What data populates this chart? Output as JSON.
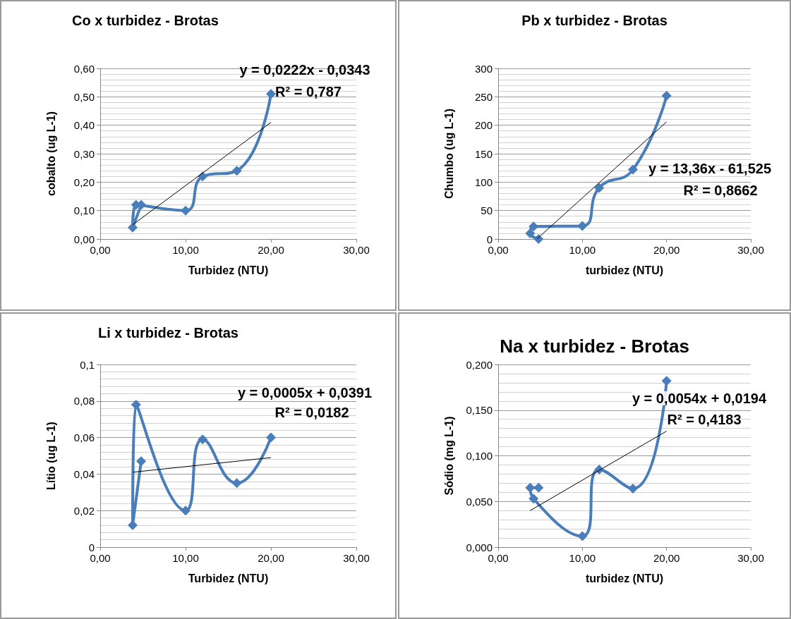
{
  "chart_data": [
    {
      "type": "line",
      "title": "Co x turbidez - Brotas",
      "xlabel": "Turbidez (NTU)",
      "ylabel": "cobalto (ug L-1)",
      "marker": "diamond",
      "line_style": "solid",
      "grid": "y",
      "xlim": [
        0,
        30
      ],
      "xticks": [
        {
          "value": 0,
          "label": "0,00"
        },
        {
          "value": 10,
          "label": "10,00"
        },
        {
          "value": 20,
          "label": "20,00"
        },
        {
          "value": 30,
          "label": "30,00"
        }
      ],
      "ylim": [
        0,
        0.6
      ],
      "yticks": [
        {
          "value": 0,
          "label": "0,00"
        },
        {
          "value": 0.1,
          "label": "0,10"
        },
        {
          "value": 0.2,
          "label": "0,20"
        },
        {
          "value": 0.3,
          "label": "0,30"
        },
        {
          "value": 0.4,
          "label": "0,40"
        },
        {
          "value": 0.5,
          "label": "0,50"
        },
        {
          "value": 0.6,
          "label": "0,60"
        }
      ],
      "series": [
        {
          "color": "#4a7ebb",
          "x": [
            4.8,
            3.8,
            4.2,
            10,
            12,
            16,
            20
          ],
          "values": [
            0.12,
            0.04,
            0.12,
            0.1,
            0.22,
            0.24,
            0.51
          ]
        },
        {
          "color": "#000000",
          "marker": "none",
          "x": [
            3.8,
            20
          ],
          "values": [
            0.05,
            0.41
          ]
        }
      ],
      "annotations": [
        "y = 0,0222x - 0,0343",
        "R² = 0,787"
      ]
    },
    {
      "type": "line",
      "title": "Pb x turbidez - Brotas",
      "xlabel": "turbidez (NTU)",
      "ylabel": "Chumbo (ug L-1)",
      "marker": "diamond",
      "line_style": "solid",
      "grid": "y",
      "xlim": [
        0,
        30
      ],
      "xticks": [
        {
          "value": 0,
          "label": "0,00"
        },
        {
          "value": 10,
          "label": "10,00"
        },
        {
          "value": 20,
          "label": "20,00"
        },
        {
          "value": 30,
          "label": "30,00"
        }
      ],
      "ylim": [
        0,
        300
      ],
      "yticks": [
        0,
        50,
        100,
        150,
        200,
        250,
        300
      ],
      "series": [
        {
          "color": "#4a7ebb",
          "x": [
            4.8,
            3.8,
            4.2,
            10,
            12,
            16,
            20
          ],
          "values": [
            0,
            10,
            22,
            23,
            90,
            122,
            252
          ]
        },
        {
          "color": "#000000",
          "marker": "none",
          "x": [
            4.6,
            20
          ],
          "values": [
            0,
            206
          ]
        }
      ],
      "annotations": [
        "y = 13,36x - 61,525",
        "R² = 0,8662"
      ]
    },
    {
      "type": "line",
      "title": "Li x turbidez - Brotas",
      "xlabel": "Turbidez (NTU)",
      "ylabel": "Lítio (ug L-1)",
      "marker": "diamond",
      "line_style": "solid",
      "grid": "y",
      "xlim": [
        0,
        30
      ],
      "xticks": [
        {
          "value": 0,
          "label": "0,00"
        },
        {
          "value": 10,
          "label": "10,00"
        },
        {
          "value": 20,
          "label": "20,00"
        },
        {
          "value": 30,
          "label": "30,00"
        }
      ],
      "ylim": [
        0,
        0.1
      ],
      "yticks": [
        0,
        {
          "value": 0.02,
          "label": "0,02"
        },
        {
          "value": 0.04,
          "label": "0,04"
        },
        {
          "value": 0.06,
          "label": "0,06"
        },
        {
          "value": 0.08,
          "label": "0,08"
        },
        {
          "value": 0.1,
          "label": "0,1"
        }
      ],
      "series": [
        {
          "color": "#4a7ebb",
          "x": [
            4.8,
            3.8,
            4.2,
            10,
            12,
            16,
            20
          ],
          "values": [
            0.047,
            0.012,
            0.078,
            0.02,
            0.059,
            0.035,
            0.06
          ]
        },
        {
          "color": "#000000",
          "marker": "none",
          "x": [
            3.8,
            20
          ],
          "values": [
            0.041,
            0.049
          ]
        }
      ],
      "annotations": [
        "y = 0,0005x + 0,0391",
        "R² = 0,0182"
      ]
    },
    {
      "type": "line",
      "title": "Na x turbidez - Brotas",
      "xlabel": "turbidez (NTU)",
      "ylabel": "Sódio (mg L-1)",
      "marker": "diamond",
      "line_style": "solid",
      "grid": "y",
      "xlim": [
        0,
        30
      ],
      "xticks": [
        {
          "value": 0,
          "label": "0,00"
        },
        {
          "value": 10,
          "label": "10,00"
        },
        {
          "value": 20,
          "label": "20,00"
        },
        {
          "value": 30,
          "label": "30,00"
        }
      ],
      "ylim": [
        0,
        0.2
      ],
      "yticks": [
        {
          "value": 0,
          "label": "0,000"
        },
        {
          "value": 0.05,
          "label": "0,050"
        },
        {
          "value": 0.1,
          "label": "0,100"
        },
        {
          "value": 0.15,
          "label": "0,150"
        },
        {
          "value": 0.2,
          "label": "0,200"
        }
      ],
      "series": [
        {
          "color": "#4a7ebb",
          "x": [
            4.8,
            3.8,
            4.2,
            10,
            12,
            16,
            20
          ],
          "values": [
            0.065,
            0.065,
            0.053,
            0.012,
            0.085,
            0.064,
            0.182
          ]
        },
        {
          "color": "#000000",
          "marker": "none",
          "x": [
            3.8,
            20
          ],
          "values": [
            0.04,
            0.127
          ]
        }
      ],
      "annotations": [
        "y = 0,0054x + 0,0194",
        "R² = 0,4183"
      ]
    }
  ]
}
